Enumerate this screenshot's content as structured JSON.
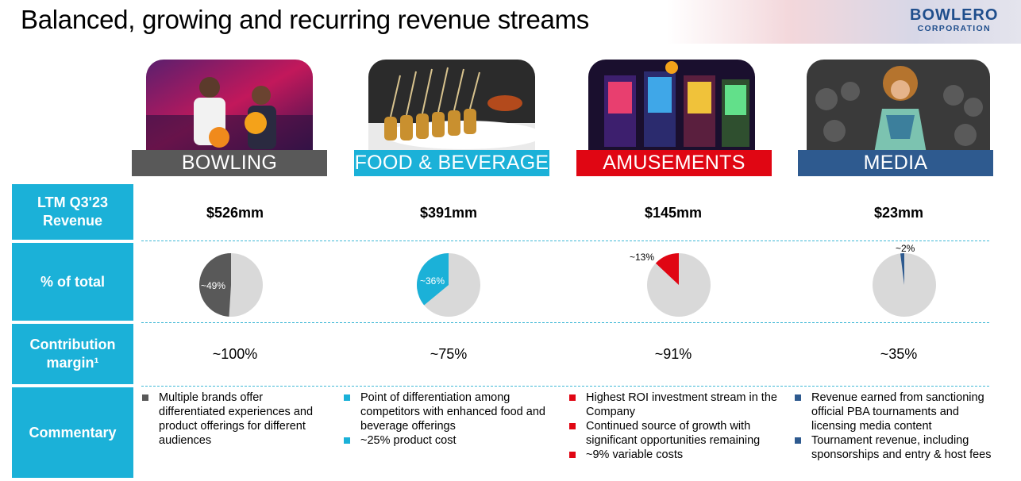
{
  "title": "Balanced, growing and recurring revenue streams",
  "logo": {
    "line1": "BOWLERO",
    "line2": "CORPORATION"
  },
  "row_labels": {
    "revenue": "LTM Q3'23 Revenue",
    "percent": "% of total",
    "margin": "Contribution margin¹",
    "commentary": "Commentary"
  },
  "colors": {
    "bowling": "#595959",
    "food": "#1bb1d8",
    "amusements": "#e00613",
    "media": "#2e5a8f",
    "label_bg": "#1bb1d8",
    "pie_rest": "#d9d9d9"
  },
  "categories": [
    {
      "name": "BOWLING",
      "revenue": "$526mm",
      "percent_label": "~49%",
      "percent": 49,
      "margin": "~100%",
      "commentary": [
        "Multiple brands offer differentiated experiences and product offerings for different audiences"
      ]
    },
    {
      "name": "FOOD & BEVERAGE",
      "revenue": "$391mm",
      "percent_label": "~36%",
      "percent": 36,
      "margin": "~75%",
      "commentary": [
        "Point of differentiation among competitors with enhanced food and beverage offerings",
        "~25% product cost"
      ]
    },
    {
      "name": "AMUSEMENTS",
      "revenue": "$145mm",
      "percent_label": "~13%",
      "percent": 13,
      "margin": "~91%",
      "commentary": [
        "Highest ROI investment stream in the Company",
        "Continued source of growth with significant opportunities remaining",
        "~9% variable costs"
      ]
    },
    {
      "name": "MEDIA",
      "revenue": "$23mm",
      "percent_label": "~2%",
      "percent": 2,
      "margin": "~35%",
      "commentary": [
        "Revenue earned from sanctioning official PBA tournaments and licensing media content",
        "Tournament revenue, including sponsorships and entry & host fees"
      ]
    }
  ]
}
